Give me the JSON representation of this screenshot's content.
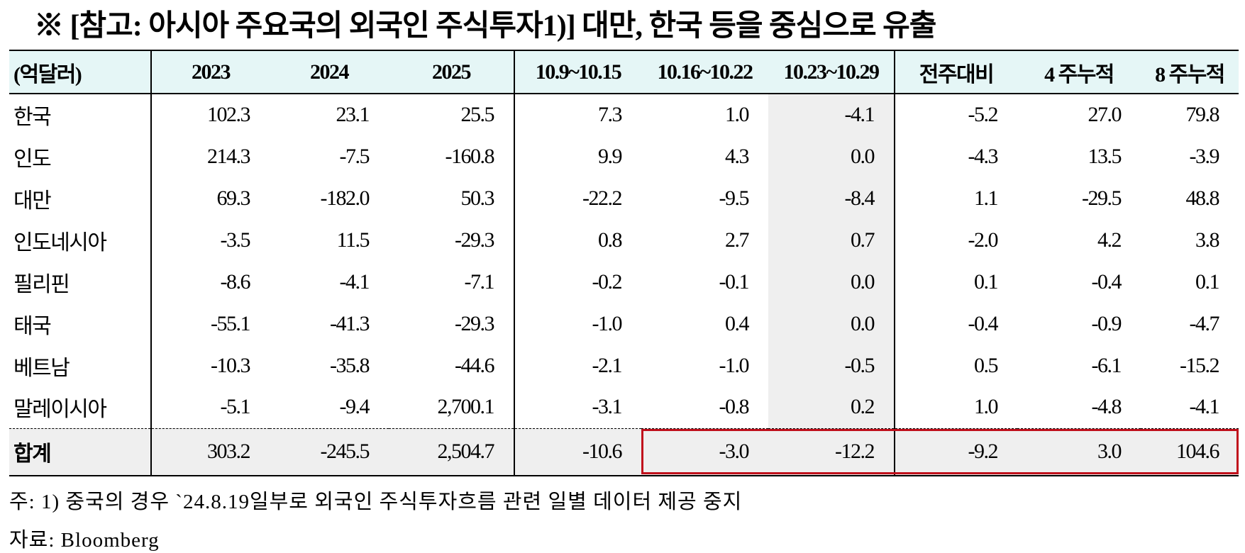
{
  "title": "※ [참고: 아시아 주요국의 외국인 주식투자1)] 대만, 한국 등을 중심으로 유출",
  "table": {
    "header": [
      "(억달러)",
      "2023",
      "2024",
      "2025",
      "10.9~10.15",
      "10.16~10.22",
      "10.23~10.29",
      "전주대비",
      "4 주누적",
      "8 주누적"
    ],
    "rows": [
      [
        "한국",
        "102.3",
        "23.1",
        "25.5",
        "7.3",
        "1.0",
        "-4.1",
        "-5.2",
        "27.0",
        "79.8"
      ],
      [
        "인도",
        "214.3",
        "-7.5",
        "-160.8",
        "9.9",
        "4.3",
        "0.0",
        "-4.3",
        "13.5",
        "-3.9"
      ],
      [
        "대만",
        "69.3",
        "-182.0",
        "50.3",
        "-22.2",
        "-9.5",
        "-8.4",
        "1.1",
        "-29.5",
        "48.8"
      ],
      [
        "인도네시아",
        "-3.5",
        "11.5",
        "-29.3",
        "0.8",
        "2.7",
        "0.7",
        "-2.0",
        "4.2",
        "3.8"
      ],
      [
        "필리핀",
        "-8.6",
        "-4.1",
        "-7.1",
        "-0.2",
        "-0.1",
        "0.0",
        "0.1",
        "-0.4",
        "0.1"
      ],
      [
        "태국",
        "-55.1",
        "-41.3",
        "-29.3",
        "-1.0",
        "0.4",
        "0.0",
        "-0.4",
        "-0.9",
        "-4.7"
      ],
      [
        "베트남",
        "-10.3",
        "-35.8",
        "-44.6",
        "-2.1",
        "-1.0",
        "-0.5",
        "0.5",
        "-6.1",
        "-15.2"
      ],
      [
        "말레이시아",
        "-5.1",
        "-9.4",
        "2,700.1",
        "-3.1",
        "-0.8",
        "0.2",
        "1.0",
        "-4.8",
        "-4.1"
      ]
    ],
    "total": [
      "합계",
      "303.2",
      "-245.5",
      "2,504.7",
      "-10.6",
      "-3.0",
      "-12.2",
      "-9.2",
      "3.0",
      "104.6"
    ]
  },
  "notes": [
    "주: 1) 중국의 경우 `24.8.19일부로 외국인 주식투자흐름 관련 일별 데이터 제공 중지",
    "자료: Bloomberg"
  ]
}
